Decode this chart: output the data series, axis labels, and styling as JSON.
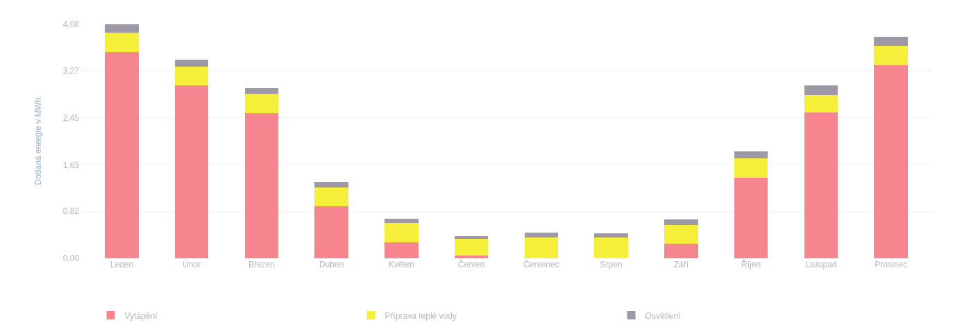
{
  "chart_data": {
    "type": "bar",
    "stacked": true,
    "ylabel": "Dodaná energie v MWh",
    "categories": [
      "Leden",
      "Únor",
      "Březen",
      "Duben",
      "Květen",
      "Červen",
      "Červenec",
      "Srpen",
      "Září",
      "Říjen",
      "Listopad",
      "Prosinec"
    ],
    "series": [
      {
        "name": "Vytápění",
        "color": "#f7858f",
        "values": [
          3.6,
          3.02,
          2.53,
          0.91,
          0.28,
          0.05,
          0,
          0,
          0.26,
          1.4,
          2.54,
          3.37
        ]
      },
      {
        "name": "Příprava teplé vody",
        "color": "#f5ef3a",
        "values": [
          0.33,
          0.32,
          0.34,
          0.32,
          0.34,
          0.29,
          0.36,
          0.36,
          0.32,
          0.34,
          0.31,
          0.34
        ]
      },
      {
        "name": "Osvětlení",
        "color": "#9e97a6",
        "values": [
          0.16,
          0.12,
          0.1,
          0.1,
          0.07,
          0.05,
          0.09,
          0.07,
          0.1,
          0.12,
          0.16,
          0.15
        ]
      }
    ],
    "ylim": [
      0,
      4.08
    ],
    "yticks": [
      {
        "value": 0,
        "label": "0,00"
      },
      {
        "value": 0.82,
        "label": "0,82"
      },
      {
        "value": 1.63,
        "label": "1,63"
      },
      {
        "value": 2.45,
        "label": "2,45"
      },
      {
        "value": 3.27,
        "label": "3,27"
      },
      {
        "value": 4.08,
        "label": "4,08"
      }
    ],
    "grid": "y",
    "legend": "bottom"
  }
}
